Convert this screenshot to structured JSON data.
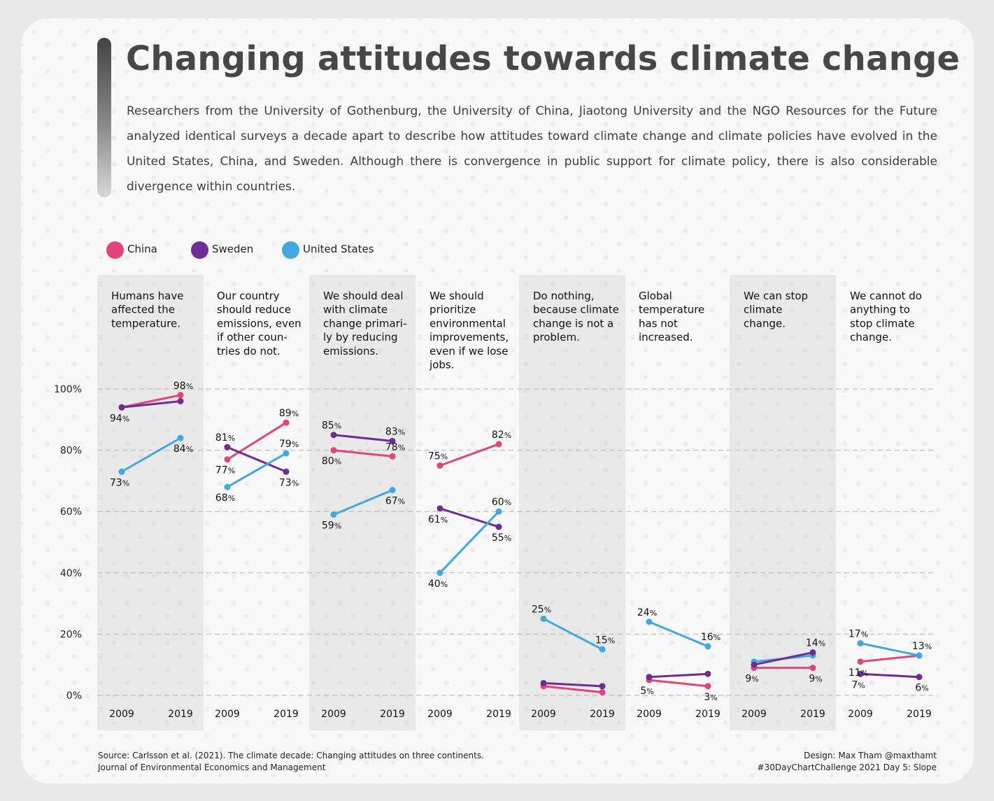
{
  "title": "Changing attitudes towards climate change",
  "subtitle": "Researchers from the University of Gothenburg, the University of China, Jiaotong University and the NGO Resources for the Future analyzed identical surveys a decade apart to describe how attitudes toward climate change and climate policies have evolved in the United States, China, and Sweden. Although there is convergence in public support for climate policy, there is also considerable divergence within countries.",
  "legend": [
    {
      "name": "China",
      "color": "#e2457a"
    },
    {
      "name": "Sweden",
      "color": "#6d2c96"
    },
    {
      "name": "United States",
      "color": "#41a9e0"
    }
  ],
  "source": {
    "line1": "Source: Carlsson et al. (2021). The climate decade: Changing attitudes on three continents.",
    "line2": "Journal of Environmental Economics and Management"
  },
  "credit": {
    "line1": "Design: Max Tham @maxthamt",
    "line2": "#30DayChartChallenge 2021 Day 5: Slope"
  },
  "chart_data": {
    "type": "line",
    "subtype": "slope",
    "x": [
      "2009",
      "2019"
    ],
    "ylim": [
      0,
      100
    ],
    "yticks": [
      0,
      20,
      40,
      60,
      80,
      100
    ],
    "ytick_labels": [
      "0%",
      "20%",
      "40%",
      "60%",
      "80%",
      "100%"
    ],
    "grid": "dashed horizontal",
    "colors": {
      "China": "#e2457a",
      "Sweden": "#6d2c96",
      "United States": "#41a9e0"
    },
    "panels": [
      {
        "label_lines": [
          "Humans have",
          "affected the",
          "temperature."
        ],
        "shaded": true,
        "series": [
          {
            "name": "China",
            "values": [
              94,
              98
            ],
            "labels": [
              "94%",
              "98%"
            ],
            "show": [
              true,
              true
            ]
          },
          {
            "name": "Sweden",
            "values": [
              94,
              96
            ],
            "labels": [
              "",
              ""
            ],
            "show": [
              false,
              false
            ]
          },
          {
            "name": "United States",
            "values": [
              73,
              84
            ],
            "labels": [
              "73%",
              "84%"
            ],
            "show": [
              true,
              true
            ]
          }
        ]
      },
      {
        "label_lines": [
          "Our country",
          "should reduce",
          "emissions, even",
          "if other coun-",
          "tries do not."
        ],
        "shaded": false,
        "series": [
          {
            "name": "China",
            "values": [
              77,
              89
            ],
            "labels": [
              "77%",
              "89%"
            ],
            "show": [
              true,
              true
            ]
          },
          {
            "name": "Sweden",
            "values": [
              81,
              73
            ],
            "labels": [
              "81%",
              "73%"
            ],
            "show": [
              true,
              true
            ]
          },
          {
            "name": "United States",
            "values": [
              68,
              79
            ],
            "labels": [
              "68%",
              "79%"
            ],
            "show": [
              true,
              true
            ]
          }
        ]
      },
      {
        "label_lines": [
          "We should deal",
          "with climate",
          "change primari-",
          "ly by reducing",
          "emissions."
        ],
        "shaded": true,
        "series": [
          {
            "name": "China",
            "values": [
              80,
              78
            ],
            "labels": [
              "80%",
              "78%"
            ],
            "show": [
              true,
              true
            ]
          },
          {
            "name": "Sweden",
            "values": [
              85,
              83
            ],
            "labels": [
              "85%",
              "83%"
            ],
            "show": [
              true,
              true
            ]
          },
          {
            "name": "United States",
            "values": [
              59,
              67
            ],
            "labels": [
              "59%",
              "67%"
            ],
            "show": [
              true,
              true
            ]
          }
        ]
      },
      {
        "label_lines": [
          "We should",
          "prioritize",
          "environmental",
          "improvements,",
          "even if we lose",
          "jobs."
        ],
        "shaded": false,
        "series": [
          {
            "name": "China",
            "values": [
              75,
              82
            ],
            "labels": [
              "75%",
              "82%"
            ],
            "show": [
              true,
              true
            ]
          },
          {
            "name": "Sweden",
            "values": [
              61,
              55
            ],
            "labels": [
              "61%",
              "55%"
            ],
            "show": [
              true,
              true
            ]
          },
          {
            "name": "United States",
            "values": [
              40,
              60
            ],
            "labels": [
              "40%",
              "60%"
            ],
            "show": [
              true,
              true
            ]
          }
        ]
      },
      {
        "label_lines": [
          "Do nothing,",
          "because climate",
          "change is not a",
          "problem."
        ],
        "shaded": true,
        "series": [
          {
            "name": "China",
            "values": [
              3,
              1
            ],
            "labels": [
              "",
              ""
            ],
            "show": [
              false,
              false
            ]
          },
          {
            "name": "Sweden",
            "values": [
              4,
              3
            ],
            "labels": [
              "",
              ""
            ],
            "show": [
              false,
              false
            ]
          },
          {
            "name": "United States",
            "values": [
              25,
              15
            ],
            "labels": [
              "25%",
              "15%"
            ],
            "show": [
              true,
              true
            ]
          }
        ]
      },
      {
        "label_lines": [
          "Global",
          "temperature",
          "has not",
          "increased."
        ],
        "shaded": false,
        "series": [
          {
            "name": "China",
            "values": [
              5,
              3
            ],
            "labels": [
              "5%",
              "3%"
            ],
            "show": [
              true,
              true
            ]
          },
          {
            "name": "Sweden",
            "values": [
              6,
              7
            ],
            "labels": [
              "",
              ""
            ],
            "show": [
              false,
              false
            ]
          },
          {
            "name": "United States",
            "values": [
              24,
              16
            ],
            "labels": [
              "24%",
              "16%"
            ],
            "show": [
              true,
              true
            ]
          }
        ]
      },
      {
        "label_lines": [
          "We can stop",
          "climate",
          "change."
        ],
        "shaded": true,
        "series": [
          {
            "name": "China",
            "values": [
              9,
              9
            ],
            "labels": [
              "9%",
              "9%"
            ],
            "show": [
              true,
              true
            ]
          },
          {
            "name": "United States",
            "values": [
              11,
              13
            ],
            "labels": [
              "",
              ""
            ],
            "show": [
              false,
              false
            ]
          },
          {
            "name": "Sweden",
            "values": [
              10,
              14
            ],
            "labels": [
              "",
              "14%"
            ],
            "show": [
              false,
              true
            ]
          }
        ]
      },
      {
        "label_lines": [
          "We cannot do",
          "anything to",
          "stop climate",
          "change."
        ],
        "shaded": false,
        "series": [
          {
            "name": "China",
            "values": [
              11,
              13
            ],
            "labels": [
              "11%",
              "13%"
            ],
            "show": [
              true,
              true
            ]
          },
          {
            "name": "Sweden",
            "values": [
              7,
              6
            ],
            "labels": [
              "7%",
              "6%"
            ],
            "show": [
              true,
              true
            ]
          },
          {
            "name": "United States",
            "values": [
              17,
              13
            ],
            "labels": [
              "17%",
              ""
            ],
            "show": [
              true,
              false
            ]
          }
        ]
      }
    ]
  }
}
